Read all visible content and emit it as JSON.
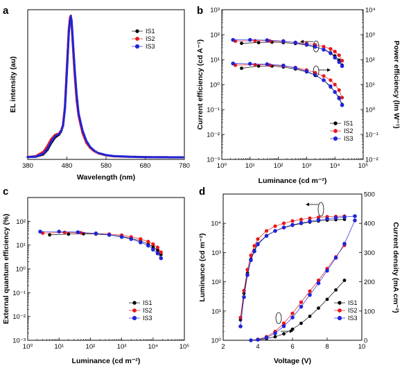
{
  "colors": {
    "IS1": "#000000",
    "IS2": "#e8171b",
    "IS3": "#1f24d8"
  },
  "chart_data": [
    {
      "panel": "a",
      "type": "line",
      "xlabel": "Wavelength (nm)",
      "ylabel": "EL intensity (au)",
      "xlim": [
        380,
        780
      ],
      "x_ticks": [
        "380",
        "480",
        "580",
        "680",
        "780"
      ],
      "legend": [
        "IS1",
        "IS2",
        "IS3"
      ],
      "legend_position": "top-right",
      "series": [
        {
          "name": "IS1",
          "x": [
            380,
            400,
            420,
            430,
            440,
            450,
            460,
            465,
            470,
            475,
            480,
            485,
            488,
            490,
            492,
            495,
            500,
            505,
            510,
            520,
            530,
            540,
            550,
            560,
            580,
            600,
            650,
            700,
            750,
            780
          ],
          "y": [
            0.002,
            0.004,
            0.02,
            0.05,
            0.1,
            0.14,
            0.16,
            0.18,
            0.22,
            0.35,
            0.62,
            0.9,
            0.98,
            1.0,
            0.96,
            0.82,
            0.6,
            0.42,
            0.3,
            0.18,
            0.11,
            0.07,
            0.045,
            0.03,
            0.015,
            0.008,
            0.003,
            0.001,
            0.0,
            0.0
          ]
        },
        {
          "name": "IS2",
          "x": [
            380,
            400,
            420,
            430,
            440,
            450,
            460,
            465,
            470,
            475,
            480,
            485,
            488,
            490,
            492,
            495,
            500,
            505,
            510,
            520,
            530,
            540,
            550,
            560,
            580,
            600,
            650,
            700,
            750,
            780
          ],
          "y": [
            0.003,
            0.008,
            0.04,
            0.08,
            0.13,
            0.16,
            0.17,
            0.19,
            0.23,
            0.36,
            0.64,
            0.91,
            0.99,
            1.0,
            0.95,
            0.8,
            0.58,
            0.4,
            0.29,
            0.17,
            0.1,
            0.065,
            0.042,
            0.028,
            0.014,
            0.007,
            0.003,
            0.001,
            0.0,
            0.0
          ]
        },
        {
          "name": "IS3",
          "x": [
            380,
            400,
            420,
            430,
            440,
            450,
            460,
            465,
            470,
            475,
            480,
            485,
            488,
            490,
            492,
            495,
            500,
            505,
            510,
            520,
            530,
            540,
            550,
            560,
            580,
            600,
            650,
            700,
            750,
            780
          ],
          "y": [
            0.002,
            0.005,
            0.025,
            0.06,
            0.11,
            0.15,
            0.165,
            0.185,
            0.22,
            0.34,
            0.6,
            0.88,
            0.97,
            1.0,
            0.97,
            0.84,
            0.62,
            0.44,
            0.31,
            0.19,
            0.115,
            0.072,
            0.047,
            0.031,
            0.016,
            0.009,
            0.003,
            0.001,
            0.0,
            0.0
          ]
        }
      ]
    },
    {
      "panel": "b",
      "type": "scatter",
      "xlabel": "Luminance (cd m⁻²)",
      "ylabel": "Current efficiency (cd A⁻¹)",
      "y2label": "Power efficiency (lm W⁻¹)",
      "xscale": "log",
      "yscale": "log",
      "xlim": [
        1,
        100000
      ],
      "ylim": [
        0.001,
        1000
      ],
      "y2lim": [
        0.01,
        10000
      ],
      "x_ticks": [
        "10⁰",
        "10¹",
        "10²",
        "10³",
        "10⁴",
        "10⁵"
      ],
      "y_ticks": [
        "10⁻³",
        "10⁻²",
        "10⁻¹",
        "10⁰",
        "10¹",
        "10²",
        "10³"
      ],
      "y2_ticks": [
        "10⁻²",
        "10⁻¹",
        "10⁰",
        "10¹",
        "10²",
        "10³",
        "10⁴"
      ],
      "legend": [
        "IS1",
        "IS2",
        "IS3"
      ],
      "legend_position": "bottom-right",
      "series": [
        {
          "name": "IS1",
          "axis": "left",
          "x": [
            5,
            20,
            60,
            150,
            400,
            1000,
            2000,
            4000,
            7000,
            10000,
            14000,
            18000
          ],
          "y": [
            45,
            48,
            50,
            48,
            44,
            38,
            32,
            26,
            19,
            14,
            9.5,
            6
          ]
        },
        {
          "name": "IS2",
          "axis": "left",
          "x": [
            3,
            15,
            50,
            150,
            400,
            1000,
            2000,
            4000,
            7000,
            10000,
            14000,
            18000
          ],
          "y": [
            55,
            57,
            56,
            53,
            49,
            44,
            39,
            33,
            27,
            21,
            15,
            9
          ]
        },
        {
          "name": "IS3",
          "axis": "left",
          "x": [
            2.5,
            10,
            40,
            150,
            400,
            1000,
            2000,
            4000,
            7000,
            10000,
            14000,
            18000
          ],
          "y": [
            62,
            62,
            60,
            55,
            48,
            40,
            33,
            25,
            18,
            12,
            8,
            5.5
          ]
        },
        {
          "name": "IS1",
          "axis": "right",
          "x": [
            5,
            20,
            60,
            150,
            400,
            1000,
            2000,
            4000,
            7000,
            10000,
            14000,
            18000
          ],
          "y": [
            45,
            55,
            55,
            50,
            42,
            32,
            24,
            15,
            8,
            5,
            3,
            1.6
          ]
        },
        {
          "name": "IS2",
          "axis": "right",
          "x": [
            3,
            15,
            50,
            150,
            400,
            1000,
            2000,
            4000,
            7000,
            10000,
            14000,
            18000
          ],
          "y": [
            60,
            62,
            60,
            55,
            48,
            38,
            30,
            22,
            15,
            10,
            6,
            3
          ]
        },
        {
          "name": "IS3",
          "axis": "right",
          "x": [
            2.5,
            10,
            40,
            150,
            400,
            1000,
            2000,
            4000,
            7000,
            10000,
            14000,
            18000
          ],
          "y": [
            70,
            68,
            65,
            58,
            46,
            34,
            24,
            15,
            8.5,
            5,
            2.8,
            1.5
          ]
        }
      ]
    },
    {
      "panel": "c",
      "type": "scatter",
      "xlabel": "Luminance (cd m⁻²)",
      "ylabel": "External quantum efficiency (%)",
      "xscale": "log",
      "yscale": "log",
      "xlim": [
        1,
        100000
      ],
      "ylim": [
        0.001,
        1000
      ],
      "x_ticks": [
        "10⁰",
        "10¹",
        "10²",
        "10³",
        "10⁴",
        "10⁵"
      ],
      "y_ticks": [
        "10⁻³",
        "10⁻²",
        "10⁻¹",
        "10⁰",
        "10¹",
        "10²"
      ],
      "legend": [
        "IS1",
        "IS2",
        "IS3"
      ],
      "legend_position": "bottom-right",
      "series": [
        {
          "name": "IS1",
          "x": [
            5,
            20,
            60,
            150,
            400,
            1000,
            2000,
            4000,
            7000,
            10000,
            14000,
            18000
          ],
          "y": [
            27,
            29,
            30,
            29,
            27,
            23,
            19,
            15,
            11,
            8.5,
            6,
            4
          ]
        },
        {
          "name": "IS2",
          "x": [
            3,
            15,
            50,
            150,
            400,
            1000,
            2000,
            4000,
            7000,
            10000,
            14000,
            18000
          ],
          "y": [
            32,
            34,
            33,
            31,
            29,
            26,
            22,
            18,
            14,
            11,
            8,
            5
          ]
        },
        {
          "name": "IS3",
          "x": [
            2.5,
            10,
            40,
            150,
            400,
            1000,
            2000,
            4000,
            7000,
            10000,
            14000,
            18000
          ],
          "y": [
            37,
            37,
            35,
            31,
            27,
            22,
            18,
            13,
            9.5,
            6.5,
            4.5,
            2.8
          ]
        }
      ]
    },
    {
      "panel": "d",
      "type": "scatter",
      "xlabel": "Voltage (V)",
      "ylabel": "Luminance (cd m⁻²)",
      "y2label": "Current density (mA cm⁻²)",
      "yscale": "log",
      "xlim": [
        2,
        10
      ],
      "ylim": [
        1,
        100000
      ],
      "y2lim": [
        0,
        500
      ],
      "x_ticks": [
        "2",
        "4",
        "6",
        "8",
        "10"
      ],
      "y_ticks": [
        "10⁰",
        "10¹",
        "10²",
        "10³",
        "10⁴"
      ],
      "y2_ticks": [
        "0",
        "100",
        "200",
        "300",
        "400",
        "500"
      ],
      "legend": [
        "IS1",
        "IS2",
        "IS3"
      ],
      "legend_position": "bottom-right",
      "series": [
        {
          "name": "IS1",
          "axis": "left",
          "x": [
            3.0,
            3.2,
            3.4,
            3.6,
            3.8,
            4.0,
            4.5,
            5.0,
            5.5,
            6.0,
            6.5,
            7.0,
            7.5,
            8.0,
            8.5,
            9.0
          ],
          "y": [
            5,
            40,
            200,
            600,
            1200,
            2000,
            3800,
            5500,
            7000,
            8500,
            9800,
            11000,
            12000,
            12800,
            13300,
            13600
          ]
        },
        {
          "name": "IS2",
          "axis": "left",
          "x": [
            3.0,
            3.2,
            3.4,
            3.6,
            3.8,
            4.0,
            4.5,
            5.0,
            5.5,
            6.0,
            6.5,
            7.0,
            7.5,
            8.0,
            8.5,
            9.0
          ],
          "y": [
            6,
            50,
            260,
            800,
            1700,
            2900,
            5500,
            8000,
            10000,
            12000,
            13500,
            15000,
            16000,
            16800,
            17200,
            17500
          ]
        },
        {
          "name": "IS3",
          "axis": "left",
          "x": [
            3.0,
            3.2,
            3.4,
            3.6,
            3.8,
            4.0,
            4.5,
            5.0,
            5.5,
            6.0,
            6.5,
            7.0,
            7.5,
            8.0,
            8.5,
            9.0,
            9.6
          ],
          "y": [
            3,
            30,
            170,
            550,
            1100,
            1900,
            3700,
            5500,
            7200,
            8800,
            10300,
            11800,
            13000,
            14200,
            15300,
            16300,
            17500
          ]
        },
        {
          "name": "IS1",
          "axis": "right",
          "x": [
            3.6,
            4.0,
            4.5,
            5.0,
            5.5,
            6.0,
            6.5,
            7.0,
            7.5,
            8.0,
            8.5,
            9.0
          ],
          "y": [
            0,
            2,
            6,
            12,
            22,
            38,
            58,
            82,
            110,
            140,
            172,
            205
          ]
        },
        {
          "name": "IS2",
          "axis": "right",
          "x": [
            3.6,
            4.0,
            4.5,
            5.0,
            5.5,
            6.0,
            6.5,
            7.0,
            7.5,
            8.0,
            8.5,
            9.0
          ],
          "y": [
            0,
            3,
            12,
            30,
            58,
            92,
            130,
            168,
            205,
            245,
            285,
            325
          ]
        },
        {
          "name": "IS3",
          "axis": "right",
          "x": [
            3.6,
            4.0,
            4.5,
            5.0,
            5.5,
            6.0,
            6.5,
            7.0,
            7.5,
            8.0,
            8.5,
            9.0,
            9.6
          ],
          "y": [
            0,
            2,
            9,
            24,
            48,
            78,
            115,
            155,
            195,
            238,
            282,
            330,
            410
          ]
        }
      ]
    }
  ]
}
